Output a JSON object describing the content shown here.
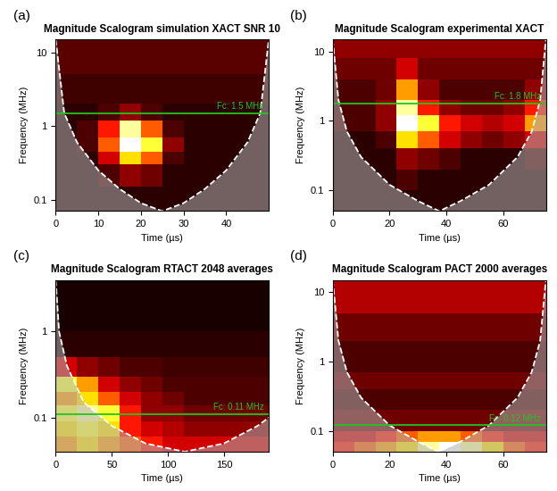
{
  "chart_data": [
    {
      "type": "heatmap",
      "panel": "(a)",
      "title": "Magnitude Scalogram simulation XACT SNR 10",
      "x_label": "Time (µs)",
      "y_label": "Frequency (MHz)",
      "log": "y",
      "xlim": [
        0,
        50
      ],
      "ylim": [
        0.07,
        15
      ],
      "xticks": [
        0,
        10,
        20,
        30,
        40
      ],
      "yticks": [
        0.1,
        1,
        10
      ],
      "time_edges": [
        0,
        5,
        10,
        15,
        20,
        25,
        30,
        35,
        40,
        45,
        50
      ],
      "freq_edges": [
        0.07,
        0.15,
        0.3,
        0.45,
        0.7,
        1.2,
        2,
        5,
        15
      ],
      "cells": [
        [
          0.05,
          0.05,
          0.05,
          0.05,
          0.05,
          0.05,
          0.05,
          0.05,
          0.05,
          0.05
        ],
        [
          0.05,
          0.05,
          0.1,
          0.2,
          0.15,
          0.05,
          0.05,
          0.05,
          0.05,
          0.05
        ],
        [
          0.05,
          0.05,
          0.3,
          0.7,
          0.5,
          0.1,
          0.05,
          0.05,
          0.05,
          0.05
        ],
        [
          0.05,
          0.1,
          0.5,
          1.0,
          0.8,
          0.2,
          0.05,
          0.05,
          0.05,
          0.05
        ],
        [
          0.05,
          0.1,
          0.4,
          0.9,
          0.5,
          0.1,
          0.05,
          0.05,
          0.05,
          0.05
        ],
        [
          0.05,
          0.05,
          0.1,
          0.2,
          0.1,
          0.05,
          0.05,
          0.05,
          0.05,
          0.05
        ],
        [
          0.08,
          0.08,
          0.08,
          0.08,
          0.08,
          0.08,
          0.08,
          0.08,
          0.08,
          0.08
        ],
        [
          0.12,
          0.12,
          0.12,
          0.12,
          0.12,
          0.12,
          0.12,
          0.12,
          0.12,
          0.12
        ]
      ],
      "cell_range": [
        0,
        1
      ],
      "coi_time": [
        0,
        2,
        5,
        10,
        15,
        20,
        25,
        30,
        35,
        40,
        45,
        48,
        50
      ],
      "coi_freq": [
        15,
        1.5,
        0.6,
        0.25,
        0.14,
        0.09,
        0.07,
        0.09,
        0.14,
        0.25,
        0.6,
        1.5,
        15
      ],
      "fc": 1.5,
      "fc_label": "Fc: 1.5 MHz",
      "color": "#22c422"
    },
    {
      "type": "heatmap",
      "panel": "(b)",
      "title": "Magnitude Scalogram experimental XACT",
      "x_label": "Time (µs)",
      "y_label": "Frequency (MHz)",
      "log": "y",
      "xlim": [
        0,
        75
      ],
      "ylim": [
        0.05,
        15
      ],
      "xticks": [
        0,
        20,
        40,
        60
      ],
      "yticks": [
        0.1,
        1,
        10
      ],
      "time_edges": [
        0,
        7.5,
        15,
        22.5,
        30,
        37.5,
        45,
        52.5,
        60,
        67.5,
        75
      ],
      "freq_edges": [
        0.05,
        0.1,
        0.2,
        0.4,
        0.7,
        1.2,
        2,
        4,
        8,
        15
      ],
      "cells": [
        [
          0.05,
          0.05,
          0.05,
          0.05,
          0.05,
          0.05,
          0.05,
          0.05,
          0.05,
          0.05
        ],
        [
          0.05,
          0.05,
          0.05,
          0.1,
          0.05,
          0.05,
          0.05,
          0.05,
          0.05,
          0.05
        ],
        [
          0.05,
          0.05,
          0.05,
          0.2,
          0.15,
          0.1,
          0.05,
          0.05,
          0.05,
          0.1
        ],
        [
          0.05,
          0.05,
          0.1,
          0.7,
          0.5,
          0.3,
          0.2,
          0.15,
          0.2,
          0.3
        ],
        [
          0.1,
          0.1,
          0.2,
          1.0,
          0.8,
          0.4,
          0.3,
          0.25,
          0.3,
          0.6
        ],
        [
          0.1,
          0.1,
          0.2,
          0.9,
          0.4,
          0.2,
          0.15,
          0.15,
          0.2,
          0.4
        ],
        [
          0.1,
          0.1,
          0.15,
          0.6,
          0.2,
          0.1,
          0.1,
          0.1,
          0.1,
          0.2
        ],
        [
          0.15,
          0.15,
          0.15,
          0.3,
          0.15,
          0.15,
          0.15,
          0.15,
          0.15,
          0.15
        ],
        [
          0.2,
          0.2,
          0.2,
          0.2,
          0.2,
          0.2,
          0.2,
          0.2,
          0.2,
          0.2
        ]
      ],
      "cell_range": [
        0,
        1
      ],
      "coi_time": [
        0,
        2,
        5,
        10,
        20,
        30,
        37.5,
        45,
        55,
        65,
        70,
        73,
        75
      ],
      "coi_freq": [
        15,
        2,
        0.7,
        0.3,
        0.12,
        0.07,
        0.05,
        0.07,
        0.12,
        0.3,
        0.7,
        2,
        15
      ],
      "fc": 1.8,
      "fc_label": "Fc: 1.8 MHz",
      "color": "#22c422"
    },
    {
      "type": "heatmap",
      "panel": "(c)",
      "title": "Magnitude Scalogram RTACT 2048 averages",
      "x_label": "Time (µs)",
      "y_label": "Frequency (MHz)",
      "log": "y",
      "xlim": [
        0,
        190
      ],
      "ylim": [
        0.04,
        4
      ],
      "xticks": [
        0,
        50,
        100,
        150
      ],
      "yticks": [
        0.1,
        1
      ],
      "time_edges": [
        0,
        19,
        38,
        57,
        76,
        95,
        114,
        133,
        152,
        171,
        190
      ],
      "freq_edges": [
        0.04,
        0.06,
        0.09,
        0.14,
        0.2,
        0.3,
        0.5,
        1,
        4
      ],
      "cells": [
        [
          0.6,
          0.7,
          0.6,
          0.5,
          0.4,
          0.3,
          0.3,
          0.3,
          0.3,
          0.3
        ],
        [
          0.7,
          0.8,
          0.7,
          0.4,
          0.3,
          0.25,
          0.2,
          0.2,
          0.2,
          0.2
        ],
        [
          0.8,
          0.9,
          0.8,
          0.4,
          0.2,
          0.2,
          0.15,
          0.15,
          0.15,
          0.15
        ],
        [
          0.6,
          0.7,
          0.5,
          0.3,
          0.2,
          0.15,
          0.1,
          0.1,
          0.1,
          0.1
        ],
        [
          0.8,
          0.6,
          0.3,
          0.2,
          0.15,
          0.1,
          0.1,
          0.1,
          0.1,
          0.1
        ],
        [
          0.3,
          0.2,
          0.15,
          0.1,
          0.1,
          0.08,
          0.08,
          0.08,
          0.08,
          0.08
        ],
        [
          0.05,
          0.05,
          0.05,
          0.05,
          0.05,
          0.05,
          0.05,
          0.05,
          0.05,
          0.05
        ],
        [
          0.02,
          0.02,
          0.02,
          0.02,
          0.02,
          0.02,
          0.02,
          0.02,
          0.02,
          0.02
        ]
      ],
      "cell_range": [
        0,
        1
      ],
      "coi_time": [
        0,
        3,
        10,
        25,
        50,
        80,
        115,
        150,
        180,
        190
      ],
      "coi_freq": [
        4,
        1,
        0.4,
        0.15,
        0.08,
        0.05,
        0.04,
        0.05,
        0.08,
        0.1
      ],
      "fc": 0.11,
      "fc_label": "Fc: 0.11 MHz",
      "color": "#22c422"
    },
    {
      "type": "heatmap",
      "panel": "(d)",
      "title": "Magnitude Scalogram PACT 2000 averages",
      "x_label": "Time (µs)",
      "y_label": "Frequency (MHz)",
      "log": "y",
      "xlim": [
        0,
        75
      ],
      "ylim": [
        0.05,
        15
      ],
      "xticks": [
        0,
        20,
        40,
        60
      ],
      "yticks": [
        0.1,
        1,
        10
      ],
      "time_edges": [
        0,
        7.5,
        15,
        22.5,
        30,
        37.5,
        45,
        52.5,
        60,
        67.5,
        75
      ],
      "freq_edges": [
        0.05,
        0.07,
        0.1,
        0.2,
        0.4,
        0.7,
        1.2,
        2,
        5,
        15
      ],
      "cells": [
        [
          0.4,
          0.5,
          0.6,
          0.7,
          0.9,
          1.0,
          0.9,
          0.7,
          0.5,
          0.4
        ],
        [
          0.3,
          0.3,
          0.4,
          0.5,
          0.6,
          0.6,
          0.5,
          0.4,
          0.3,
          0.3
        ],
        [
          0.15,
          0.15,
          0.15,
          0.15,
          0.15,
          0.15,
          0.15,
          0.15,
          0.15,
          0.15
        ],
        [
          0.1,
          0.1,
          0.1,
          0.1,
          0.1,
          0.1,
          0.1,
          0.1,
          0.1,
          0.1
        ],
        [
          0.15,
          0.15,
          0.15,
          0.15,
          0.15,
          0.15,
          0.15,
          0.15,
          0.15,
          0.15
        ],
        [
          0.1,
          0.1,
          0.1,
          0.1,
          0.1,
          0.1,
          0.1,
          0.1,
          0.1,
          0.1
        ],
        [
          0.1,
          0.1,
          0.1,
          0.1,
          0.1,
          0.1,
          0.1,
          0.1,
          0.1,
          0.1
        ],
        [
          0.15,
          0.15,
          0.15,
          0.15,
          0.15,
          0.15,
          0.15,
          0.15,
          0.15,
          0.15
        ],
        [
          0.25,
          0.25,
          0.25,
          0.25,
          0.25,
          0.25,
          0.25,
          0.25,
          0.25,
          0.25
        ]
      ],
      "cell_range": [
        0,
        1
      ],
      "coi_time": [
        0,
        2,
        5,
        10,
        20,
        30,
        37,
        45,
        55,
        65,
        70,
        73,
        75
      ],
      "coi_freq": [
        15,
        2,
        0.7,
        0.3,
        0.12,
        0.07,
        0.05,
        0.07,
        0.12,
        0.3,
        0.7,
        2,
        15
      ],
      "fc": 0.12,
      "fc_label": "Fc: 0.12 MHz",
      "color": "#22c422"
    }
  ]
}
